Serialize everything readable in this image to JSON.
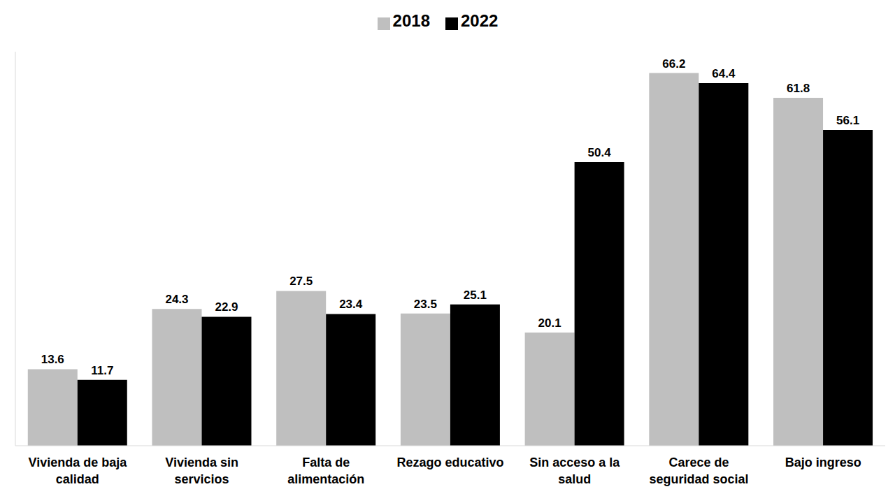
{
  "chart_data": {
    "type": "bar",
    "categories": [
      "Vivienda de baja calidad",
      "Vivienda sin servicios",
      "Falta de alimentación",
      "Rezago educativo",
      "Sin acceso a la salud",
      "Carece de seguridad social",
      "Bajo ingreso"
    ],
    "series": [
      {
        "name": "2018",
        "color": "#bfbfbf",
        "values": [
          13.6,
          24.3,
          27.5,
          23.5,
          20.1,
          66.2,
          61.8
        ]
      },
      {
        "name": "2022",
        "color": "#000000",
        "values": [
          11.7,
          22.9,
          23.4,
          25.1,
          50.4,
          64.4,
          56.1
        ]
      }
    ],
    "ylim": [
      0,
      70
    ],
    "data_labels": true,
    "tick_labels": "x",
    "grid": false,
    "legend": "top"
  }
}
